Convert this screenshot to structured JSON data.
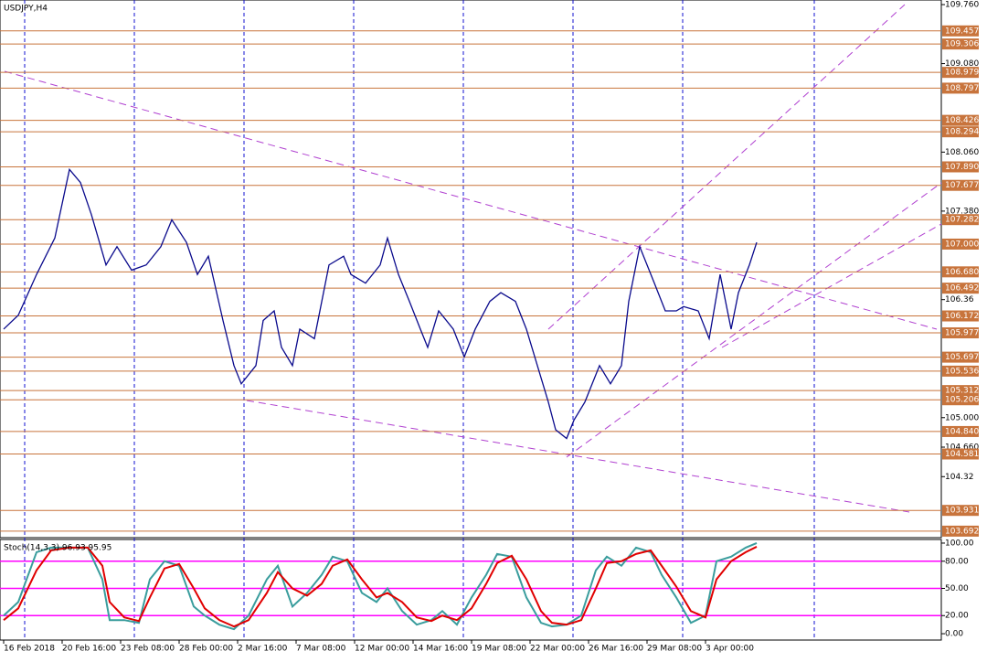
{
  "chart_data": [
    {
      "type": "line",
      "title": "USDJPY,H4",
      "color": "#0a0a8c",
      "x": [
        1,
        5,
        10,
        15,
        19,
        22,
        25,
        29,
        32,
        36,
        40,
        44,
        47,
        51,
        54,
        57,
        61,
        64,
        66,
        70,
        72,
        75,
        77,
        80,
        82,
        86,
        90,
        94,
        96,
        100,
        104,
        106,
        109,
        112,
        115,
        117,
        120,
        124,
        127,
        130,
        134,
        137,
        141,
        144,
        147,
        150,
        152,
        155,
        157,
        160,
        164,
        167,
        170,
        172,
        175,
        179,
        182,
        185,
        187,
        191,
        194,
        197,
        200,
        202,
        205,
        207
      ],
      "series": [
        {
          "color": "#0a0a8c",
          "values": [
            106.02,
            106.18,
            106.65,
            107.07,
            107.86,
            107.71,
            107.34,
            106.76,
            106.97,
            106.7,
            106.76,
            106.97,
            107.28,
            107.02,
            106.65,
            106.86,
            106.12,
            105.6,
            105.39,
            105.6,
            106.12,
            106.23,
            105.81,
            105.6,
            106.02,
            105.91,
            106.76,
            106.86,
            106.65,
            106.55,
            106.76,
            107.07,
            106.65,
            106.34,
            106.02,
            105.81,
            106.23,
            106.02,
            105.7,
            106.02,
            106.34,
            106.44,
            106.34,
            106.02,
            105.6,
            105.18,
            104.86,
            104.76,
            104.97,
            105.18,
            105.6,
            105.39,
            105.6,
            106.34,
            106.97,
            106.55,
            106.23,
            106.23,
            106.28,
            106.23,
            105.91,
            106.65,
            106.02,
            106.44,
            106.76,
            107.02
          ]
        }
      ],
      "xlim": [
        0,
        257.5
      ],
      "ylim": [
        103.617,
        109.813
      ],
      "xticks": [
        {
          "value": 1,
          "label": "16 Feb 2018"
        },
        {
          "value": 17,
          "label": "20 Feb 16:00"
        },
        {
          "value": 33,
          "label": "23 Feb 08:00"
        },
        {
          "value": 49,
          "label": "28 Feb 00:00"
        },
        {
          "value": 65,
          "label": "2 Mar 16:00"
        },
        {
          "value": 81,
          "label": "7 Mar 08:00"
        },
        {
          "value": 97,
          "label": "12 Mar 00:00"
        },
        {
          "value": 113,
          "label": "14 Mar 16:00"
        },
        {
          "value": 129,
          "label": "19 Mar 08:00"
        },
        {
          "value": 145,
          "label": "22 Mar 00:00"
        },
        {
          "value": 161,
          "label": "26 Mar 16:00"
        },
        {
          "value": 177,
          "label": "29 Mar 08:00"
        },
        {
          "value": 193,
          "label": "3 Apr 00:00"
        }
      ],
      "yticks": [
        {
          "value": 109.76,
          "label": "109.760"
        },
        {
          "value": 109.08,
          "label": "109.080"
        },
        {
          "value": 108.06,
          "label": "108.060"
        },
        {
          "value": 107.38,
          "label": "107.380"
        },
        106.36,
        {
          "value": 105.0,
          "label": "105.000"
        },
        {
          "value": 104.66,
          "label": "104.660"
        },
        104.32
      ],
      "levels": [
        109.457,
        109.306,
        108.979,
        108.797,
        108.426,
        108.294,
        {
          "value": 107.89,
          "label": "107.890"
        },
        107.677,
        107.282,
        {
          "value": 107.0,
          "label": "107.000"
        },
        {
          "value": 106.68,
          "label": "106.680"
        },
        106.492,
        106.172,
        105.977,
        105.697,
        105.536,
        105.312,
        105.206,
        {
          "value": 104.84,
          "label": "104.840"
        },
        104.581,
        103.931,
        103.692
      ]
    },
    {
      "type": "line",
      "title": "Stoch(14,3,3) 96.93 95.95",
      "x": [
        1,
        5,
        10,
        14,
        19,
        24,
        28,
        30,
        34,
        38,
        41,
        45,
        49,
        53,
        56,
        60,
        64,
        68,
        73,
        76,
        80,
        84,
        88,
        91,
        95,
        99,
        103,
        106,
        110,
        114,
        118,
        121,
        125,
        129,
        133,
        136,
        140,
        144,
        148,
        151,
        155,
        159,
        163,
        166,
        170,
        174,
        178,
        181,
        185,
        189,
        193,
        196,
        200,
        204,
        207
      ],
      "series": [
        {
          "color": "#3a9d9d",
          "values": [
            20,
            35,
            90,
            95,
            95,
            95,
            60,
            15,
            15,
            12,
            60,
            80,
            75,
            30,
            20,
            10,
            5,
            20,
            60,
            75,
            30,
            45,
            65,
            85,
            80,
            45,
            35,
            50,
            25,
            10,
            15,
            25,
            10,
            40,
            65,
            88,
            85,
            40,
            12,
            8,
            10,
            20,
            70,
            85,
            75,
            95,
            90,
            65,
            40,
            12,
            20,
            80,
            85,
            95,
            100
          ]
        },
        {
          "color": "#e00000",
          "values": [
            15,
            28,
            70,
            92,
            95,
            95,
            75,
            35,
            18,
            14,
            40,
            72,
            77,
            50,
            28,
            15,
            8,
            15,
            45,
            68,
            50,
            42,
            55,
            75,
            82,
            60,
            40,
            45,
            35,
            18,
            14,
            20,
            15,
            28,
            55,
            78,
            86,
            60,
            25,
            12,
            10,
            15,
            50,
            78,
            80,
            88,
            92,
            75,
            52,
            25,
            18,
            60,
            80,
            90,
            96
          ]
        }
      ],
      "ylim": [
        -7,
        104
      ],
      "yticks": [
        {
          "value": 100,
          "label": "100.00"
        },
        {
          "value": 80,
          "label": "80.00"
        },
        {
          "value": 50,
          "label": "50.00"
        },
        {
          "value": 20,
          "label": "20.00"
        },
        {
          "value": 0,
          "label": "0.00"
        }
      ],
      "levels": [
        80,
        50,
        20
      ]
    }
  ]
}
